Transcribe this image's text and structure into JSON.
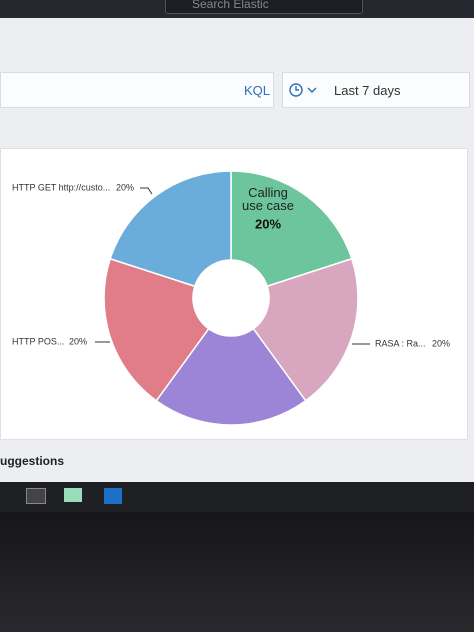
{
  "ui": {
    "search": "Search Elastic",
    "query_language": "KQL",
    "time_range": "Last 7 days",
    "section": "uggestions"
  },
  "chart_data": {
    "type": "pie",
    "categories": [
      "Calling use case",
      "RASA : Ra...",
      null,
      "HTTP POS...",
      "HTTP GET http://custo..."
    ],
    "values": [
      20,
      20,
      20,
      20,
      20
    ],
    "value_labels": [
      "20%",
      "20%",
      null,
      "20%",
      "20%"
    ],
    "colors": [
      "#6cc59c",
      "#d9a6bf",
      "#9c85d6",
      "#e07d89",
      "#6aaddb"
    ],
    "donut": true
  }
}
